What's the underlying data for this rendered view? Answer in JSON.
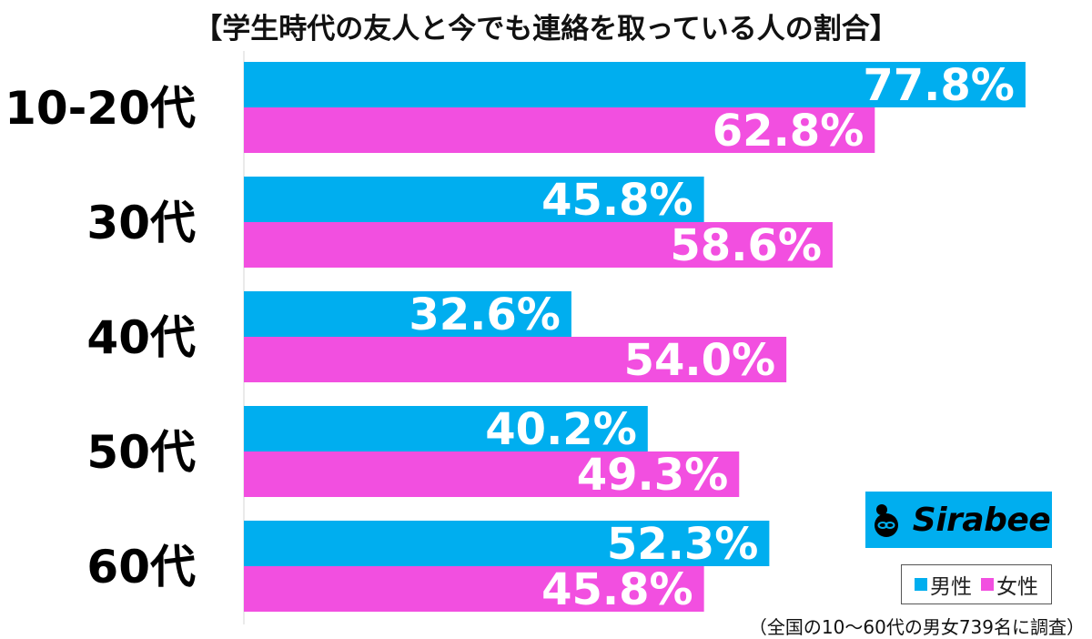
{
  "title": "【学生時代の友人と今でも連絡を取っている人の割合】",
  "note": "（全国の10〜60代の男女739名に調査）",
  "logo_text": "Sirabee",
  "colors": {
    "male": "#00AEEF",
    "female": "#F24FE0",
    "logo_bg": "#00AEEF"
  },
  "chart_data": {
    "type": "bar",
    "orientation": "horizontal",
    "title": "【学生時代の友人と今でも連絡を取っている人の割合】",
    "categories": [
      "10-20代",
      "30代",
      "40代",
      "50代",
      "60代"
    ],
    "series": [
      {
        "name": "男性",
        "values": [
          77.8,
          45.8,
          32.6,
          40.2,
          52.3
        ]
      },
      {
        "name": "女性",
        "values": [
          62.8,
          58.6,
          54.0,
          49.3,
          45.8
        ]
      }
    ],
    "value_labels": [
      [
        "77.8%",
        "45.8%",
        "32.6%",
        "40.2%",
        "52.3%"
      ],
      [
        "62.8%",
        "58.6%",
        "54.0%",
        "49.3%",
        "45.8%"
      ]
    ],
    "unit": "%",
    "xlim": [
      0,
      100
    ],
    "grid": false,
    "legend_position": "bottom-right"
  }
}
